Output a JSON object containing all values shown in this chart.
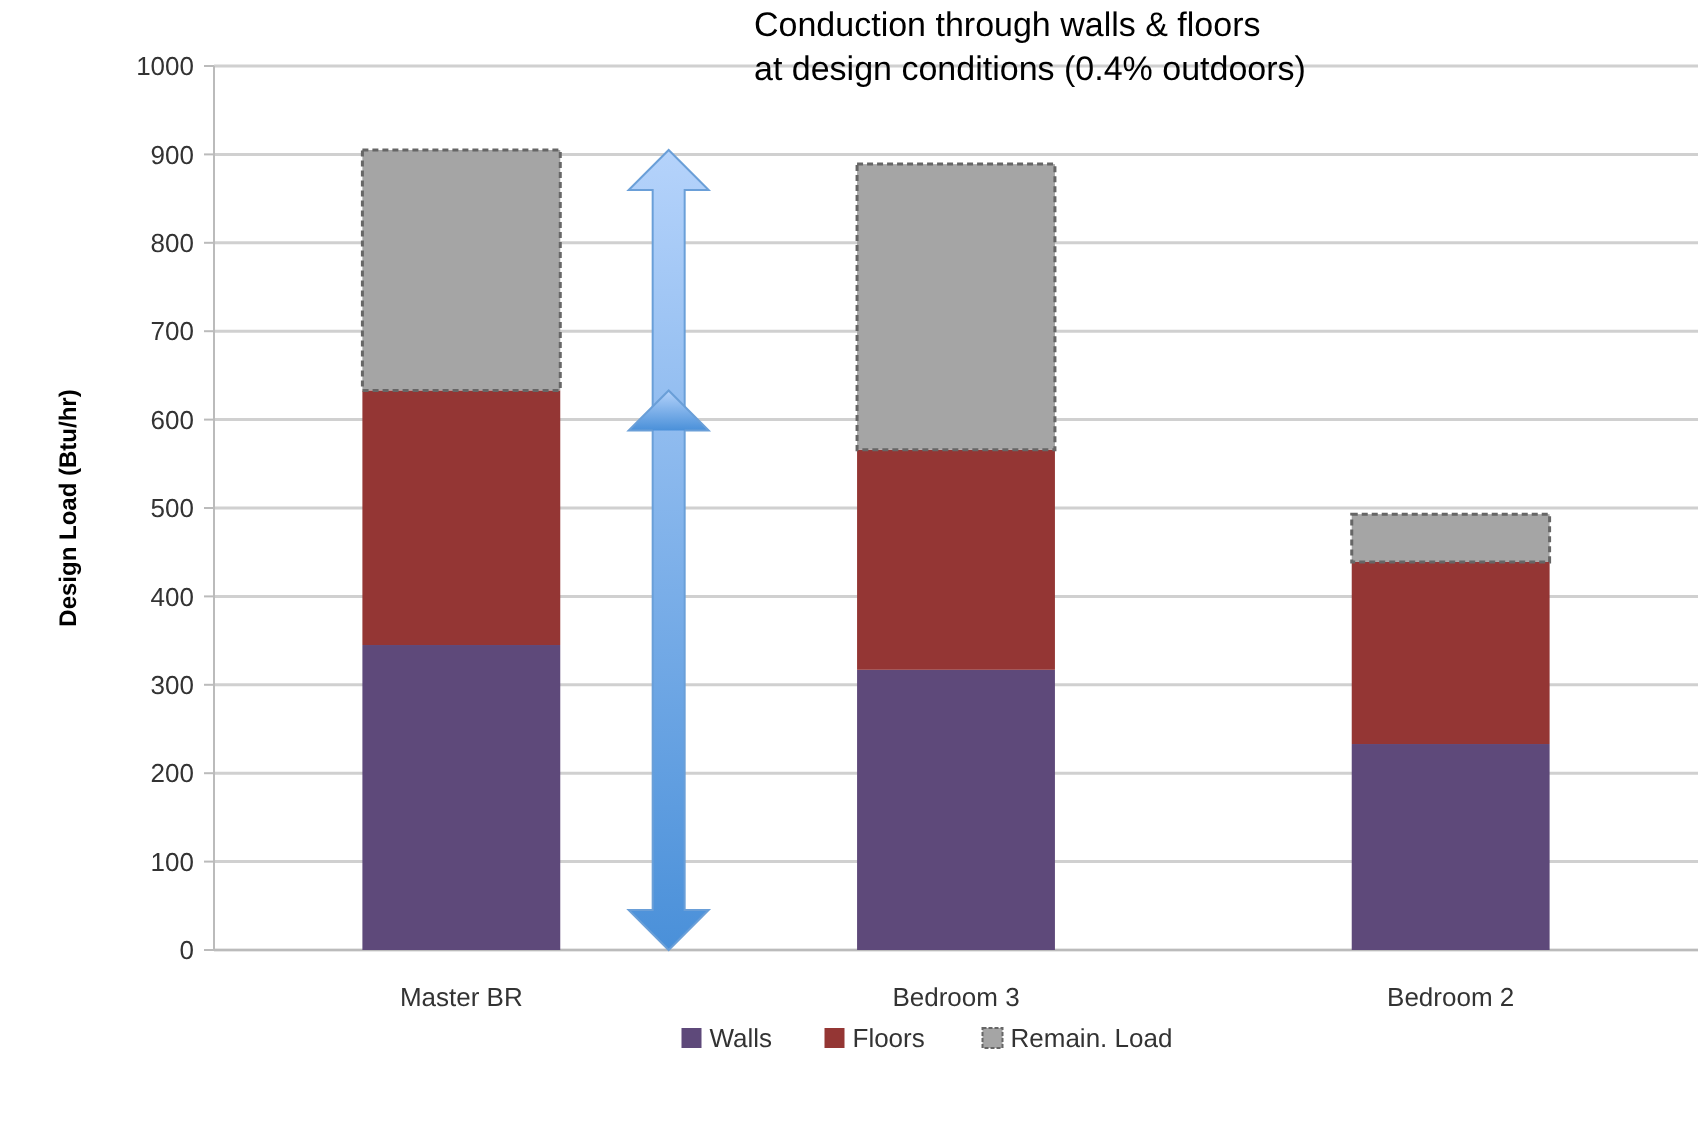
{
  "chart_data": {
    "type": "bar",
    "stacked": true,
    "title": "Conduction through walls & floors at design conditions (0.4% outdoors)",
    "ylabel": "Design Load (Btu/hr)",
    "categories": [
      "Master BR",
      "Bedroom 3",
      "Bedroom 2"
    ],
    "series": [
      {
        "name": "Walls",
        "color": "#5e497a",
        "values": [
          345,
          317,
          233
        ]
      },
      {
        "name": "Floors",
        "color": "#943634",
        "values": [
          288,
          249,
          206
        ]
      },
      {
        "name": "Remain. Load",
        "color": "#a5a5a5",
        "line_style": "dashed",
        "values": [
          272,
          323,
          54
        ]
      }
    ],
    "ylim": [
      0,
      1000
    ],
    "yticks": [
      0,
      100,
      200,
      300,
      400,
      500,
      600,
      700,
      800,
      900,
      1000
    ],
    "grid": "y",
    "legend": "bottom"
  }
}
